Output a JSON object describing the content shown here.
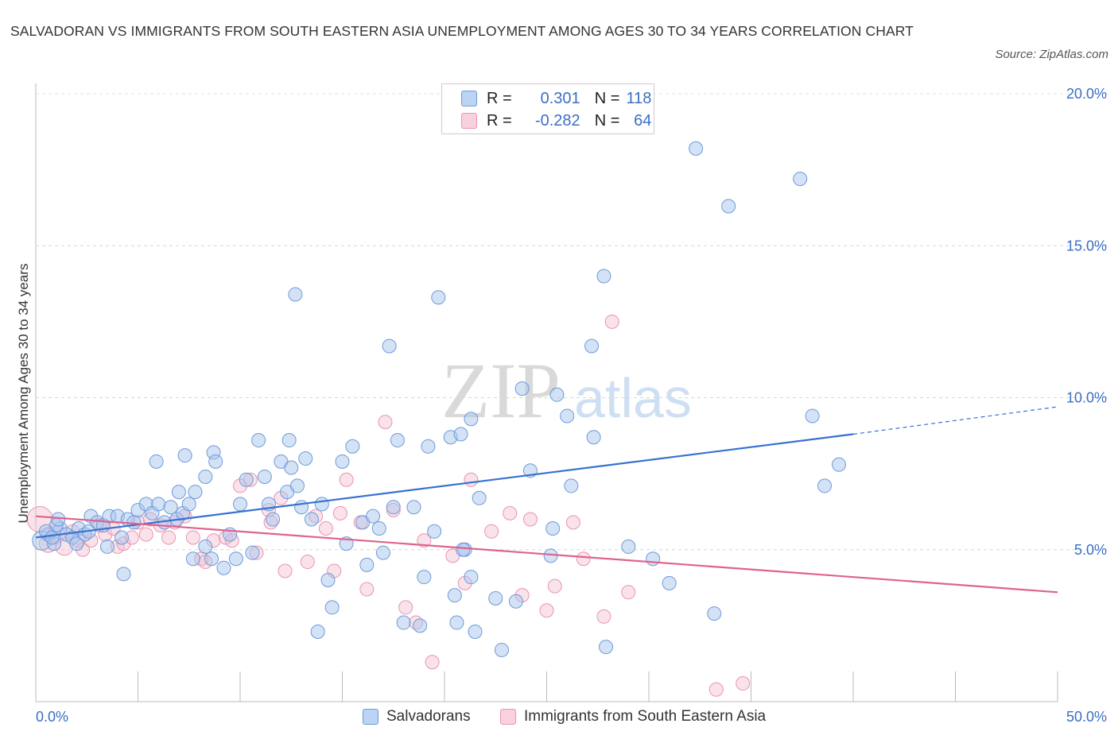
{
  "title": "SALVADORAN VS IMMIGRANTS FROM SOUTH EASTERN ASIA UNEMPLOYMENT AMONG AGES 30 TO 34 YEARS CORRELATION CHART",
  "source": "Source: ZipAtlas.com",
  "watermark": {
    "zip": "ZIP",
    "atlas": "atlas"
  },
  "legend": {
    "r_label": "R =",
    "n_label": "N =",
    "rows": [
      {
        "r": "0.301",
        "n": "118"
      },
      {
        "r": "-0.282",
        "n": "64"
      }
    ]
  },
  "bottom_legend": [
    "Salvadorans",
    "Immigrants from South Eastern Asia"
  ],
  "colors": {
    "blue_fill": "#a9c6ee",
    "blue_stroke": "#6d9bd9",
    "blue_line": "#3472d1",
    "pink_fill": "#f5bfd0",
    "pink_stroke": "#e994b1",
    "pink_line": "#e0628f",
    "axis_text": "#3a6fc4"
  },
  "chart_data": {
    "type": "scatter",
    "xlabel": "",
    "ylabel": "Unemployment Among Ages 30 to 34 years",
    "xlim": [
      0,
      50
    ],
    "ylim": [
      0,
      20
    ],
    "x_tick_labels": [
      "0.0%",
      "50.0%"
    ],
    "y_ticks": [
      5,
      10,
      15,
      20
    ],
    "y_tick_labels": [
      "5.0%",
      "10.0%",
      "15.0%",
      "20.0%"
    ],
    "grid": true,
    "series": [
      {
        "name": "Salvadorans",
        "r": 0.301,
        "n": 118,
        "trend": {
          "x0": 0,
          "y0": 5.4,
          "x1": 40,
          "y1": 8.8,
          "dash_to_x": 50,
          "dash_to_y": 9.7
        },
        "points": [
          [
            0.3,
            5.3
          ],
          [
            0.6,
            5.5
          ],
          [
            0.9,
            5.2
          ],
          [
            1.2,
            5.7
          ],
          [
            1.5,
            5.5
          ],
          [
            1.8,
            5.4
          ],
          [
            2.1,
            5.7
          ],
          [
            2.4,
            5.5
          ],
          [
            2.7,
            6.1
          ],
          [
            3.0,
            5.9
          ],
          [
            3.3,
            5.8
          ],
          [
            3.6,
            6.1
          ],
          [
            1.0,
            5.8
          ],
          [
            2.0,
            5.2
          ],
          [
            0.5,
            5.6
          ],
          [
            3.5,
            5.1
          ],
          [
            4.0,
            6.1
          ],
          [
            4.2,
            5.4
          ],
          [
            4.5,
            6.0
          ],
          [
            4.8,
            5.9
          ],
          [
            5.0,
            6.3
          ],
          [
            5.4,
            6.5
          ],
          [
            5.7,
            6.2
          ],
          [
            6.0,
            6.5
          ],
          [
            6.3,
            5.9
          ],
          [
            6.6,
            6.4
          ],
          [
            6.9,
            6.0
          ],
          [
            7.2,
            6.2
          ],
          [
            7.5,
            6.5
          ],
          [
            4.3,
            4.2
          ],
          [
            5.9,
            7.9
          ],
          [
            7.0,
            6.9
          ],
          [
            7.3,
            8.1
          ],
          [
            7.8,
            6.9
          ],
          [
            8.3,
            7.4
          ],
          [
            8.7,
            8.2
          ],
          [
            8.8,
            7.9
          ],
          [
            7.7,
            4.7
          ],
          [
            8.3,
            5.1
          ],
          [
            8.6,
            4.7
          ],
          [
            9.2,
            4.4
          ],
          [
            9.5,
            5.5
          ],
          [
            9.8,
            4.7
          ],
          [
            10.0,
            6.5
          ],
          [
            10.3,
            7.3
          ],
          [
            10.6,
            4.9
          ],
          [
            10.9,
            8.6
          ],
          [
            11.2,
            7.4
          ],
          [
            11.4,
            6.5
          ],
          [
            11.6,
            6.0
          ],
          [
            12.0,
            7.9
          ],
          [
            12.3,
            6.9
          ],
          [
            12.5,
            7.7
          ],
          [
            12.4,
            8.6
          ],
          [
            12.8,
            7.1
          ],
          [
            13.0,
            6.4
          ],
          [
            13.2,
            8.0
          ],
          [
            13.5,
            6.0
          ],
          [
            12.7,
            13.4
          ],
          [
            13.8,
            2.3
          ],
          [
            14.0,
            6.5
          ],
          [
            14.3,
            4.0
          ],
          [
            14.5,
            3.1
          ],
          [
            15.0,
            7.9
          ],
          [
            15.2,
            5.2
          ],
          [
            15.5,
            8.4
          ],
          [
            16.0,
            5.9
          ],
          [
            16.2,
            4.5
          ],
          [
            16.5,
            6.1
          ],
          [
            16.8,
            5.7
          ],
          [
            17.0,
            4.9
          ],
          [
            17.3,
            11.7
          ],
          [
            17.5,
            6.4
          ],
          [
            17.7,
            8.6
          ],
          [
            18.0,
            2.6
          ],
          [
            18.5,
            6.4
          ],
          [
            18.8,
            2.5
          ],
          [
            19.0,
            4.1
          ],
          [
            19.2,
            8.4
          ],
          [
            19.5,
            5.6
          ],
          [
            19.7,
            13.3
          ],
          [
            20.3,
            8.7
          ],
          [
            20.5,
            3.5
          ],
          [
            20.6,
            2.6
          ],
          [
            20.8,
            8.8
          ],
          [
            21.0,
            5.0
          ],
          [
            21.3,
            9.3
          ],
          [
            21.5,
            2.3
          ],
          [
            21.7,
            6.7
          ],
          [
            20.9,
            5.0
          ],
          [
            21.3,
            4.1
          ],
          [
            22.5,
            3.4
          ],
          [
            22.8,
            1.7
          ],
          [
            23.5,
            3.3
          ],
          [
            23.8,
            10.3
          ],
          [
            24.2,
            7.6
          ],
          [
            25.2,
            4.8
          ],
          [
            25.3,
            5.7
          ],
          [
            25.5,
            10.1
          ],
          [
            26.0,
            9.4
          ],
          [
            26.2,
            7.1
          ],
          [
            27.2,
            11.7
          ],
          [
            27.3,
            8.7
          ],
          [
            27.8,
            14.0
          ],
          [
            27.9,
            1.8
          ],
          [
            29.0,
            5.1
          ],
          [
            30.2,
            4.7
          ],
          [
            31.0,
            3.9
          ],
          [
            32.3,
            18.2
          ],
          [
            33.2,
            2.9
          ],
          [
            33.9,
            16.3
          ],
          [
            37.4,
            17.2
          ],
          [
            38.0,
            9.4
          ],
          [
            38.6,
            7.1
          ],
          [
            39.3,
            7.8
          ],
          [
            2.6,
            5.6
          ],
          [
            1.1,
            6.0
          ],
          [
            0.8,
            5.4
          ]
        ]
      },
      {
        "name": "Immigrants from South Eastern Asia",
        "r": -0.282,
        "n": 64,
        "trend": {
          "x0": 0,
          "y0": 6.1,
          "x1": 50,
          "y1": 3.6
        },
        "points": [
          [
            0.2,
            6.0
          ],
          [
            0.6,
            5.2
          ],
          [
            1.0,
            5.5
          ],
          [
            1.4,
            5.1
          ],
          [
            1.8,
            5.6
          ],
          [
            2.1,
            5.3
          ],
          [
            2.3,
            5.0
          ],
          [
            2.7,
            5.3
          ],
          [
            3.1,
            5.8
          ],
          [
            3.4,
            5.5
          ],
          [
            3.8,
            5.7
          ],
          [
            4.0,
            5.1
          ],
          [
            4.3,
            5.2
          ],
          [
            4.7,
            5.4
          ],
          [
            5.0,
            5.9
          ],
          [
            5.4,
            5.5
          ],
          [
            5.6,
            6.0
          ],
          [
            6.1,
            5.8
          ],
          [
            6.5,
            5.4
          ],
          [
            6.8,
            5.9
          ],
          [
            7.3,
            6.1
          ],
          [
            7.7,
            5.4
          ],
          [
            8.1,
            4.7
          ],
          [
            8.3,
            4.6
          ],
          [
            8.7,
            5.3
          ],
          [
            9.3,
            5.4
          ],
          [
            9.6,
            5.3
          ],
          [
            10.0,
            7.1
          ],
          [
            10.5,
            7.3
          ],
          [
            10.8,
            4.9
          ],
          [
            11.4,
            6.3
          ],
          [
            11.5,
            5.9
          ],
          [
            12.0,
            6.7
          ],
          [
            12.2,
            4.3
          ],
          [
            13.3,
            4.6
          ],
          [
            13.7,
            6.1
          ],
          [
            14.2,
            5.7
          ],
          [
            14.6,
            4.3
          ],
          [
            14.9,
            6.2
          ],
          [
            15.2,
            7.3
          ],
          [
            15.9,
            5.9
          ],
          [
            16.2,
            3.7
          ],
          [
            17.1,
            9.2
          ],
          [
            17.5,
            6.3
          ],
          [
            18.1,
            3.1
          ],
          [
            18.6,
            2.6
          ],
          [
            19.0,
            5.3
          ],
          [
            19.4,
            1.3
          ],
          [
            20.4,
            4.8
          ],
          [
            21.0,
            3.9
          ],
          [
            21.3,
            7.3
          ],
          [
            22.3,
            5.6
          ],
          [
            23.2,
            6.2
          ],
          [
            23.8,
            3.5
          ],
          [
            24.2,
            6.0
          ],
          [
            25.0,
            3.0
          ],
          [
            25.4,
            3.8
          ],
          [
            26.3,
            5.9
          ],
          [
            26.8,
            4.7
          ],
          [
            27.8,
            2.8
          ],
          [
            28.2,
            12.5
          ],
          [
            29.0,
            3.6
          ],
          [
            33.3,
            0.4
          ],
          [
            34.6,
            0.6
          ]
        ]
      }
    ]
  }
}
